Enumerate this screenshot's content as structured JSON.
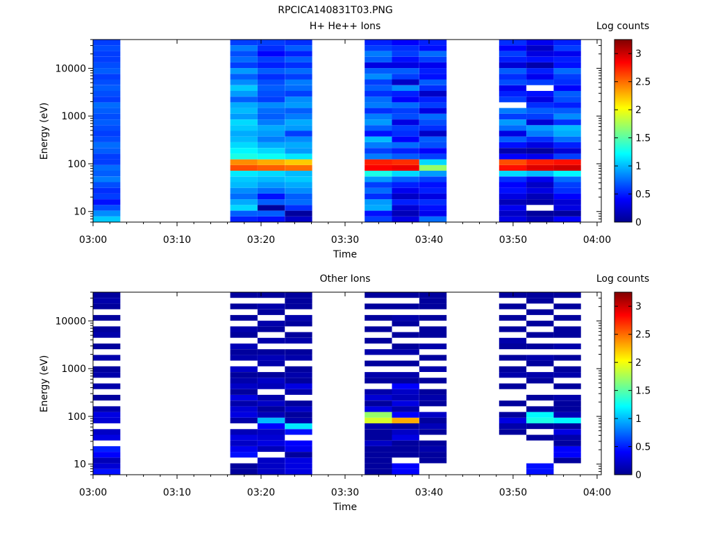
{
  "figure_title": "RPCICA140831T03.PNG",
  "colors": {
    "colormap": [
      "#00008f",
      "#0000ff",
      "#0080ff",
      "#00ffff",
      "#80ff80",
      "#ffff00",
      "#ff8000",
      "#ff0000",
      "#800000"
    ]
  },
  "chart_data": [
    {
      "type": "heatmap",
      "title": "H+ He++ Ions",
      "xlabel": "Time",
      "ylabel": "Energy (eV)",
      "xticks": [
        "03:00",
        "03:10",
        "03:20",
        "03:30",
        "03:40",
        "03:50",
        "04:00"
      ],
      "yticks": [
        "10",
        "100",
        "1000",
        "10000"
      ],
      "yscale": "log",
      "ylim": [
        6,
        40000
      ],
      "colorbar": {
        "label": "Log counts",
        "ticks": [
          "0",
          "0.5",
          "1",
          "1.5",
          "2",
          "2.5",
          "3"
        ],
        "range": [
          0,
          3.25
        ]
      },
      "time_columns": [
        {
          "start": "03:00:00",
          "end": "03:03:15"
        },
        {
          "start": "03:16:20",
          "end": "03:19:35"
        },
        {
          "start": "03:19:35",
          "end": "03:22:50"
        },
        {
          "start": "03:22:50",
          "end": "03:26:05"
        },
        {
          "start": "03:32:20",
          "end": "03:35:35"
        },
        {
          "start": "03:35:35",
          "end": "03:38:50"
        },
        {
          "start": "03:38:50",
          "end": "03:42:05"
        },
        {
          "start": "03:48:20",
          "end": "03:51:35"
        },
        {
          "start": "03:51:35",
          "end": "03:54:50"
        },
        {
          "start": "03:54:50",
          "end": "03:58:05"
        }
      ],
      "cells": [
        {
          "col": 0,
          "values": [
            1.05,
            0.85,
            0.65,
            0.45,
            0.6,
            0.55,
            0.65,
            0.8,
            0.7,
            0.75,
            0.6,
            0.6,
            0.7,
            0.75,
            0.65,
            0.6,
            0.65,
            0.7,
            0.65,
            0.7,
            0.75,
            0.6,
            0.65,
            0.7,
            0.65,
            0.6,
            0.7,
            0.65,
            0.6,
            0.6,
            0.65,
            0.6
          ]
        },
        {
          "col": 1,
          "values": [
            0.5,
            0.7,
            1.1,
            0.95,
            0.75,
            0.85,
            1.0,
            1.05,
            1.15,
            2.6,
            2.4,
            1.3,
            1.2,
            1.1,
            1.0,
            0.95,
            1.05,
            1.1,
            0.9,
            1.0,
            0.95,
            0.7,
            0.9,
            1.05,
            0.85,
            0.7,
            0.9,
            0.6,
            0.75,
            0.65,
            0.8,
            0.6
          ]
        },
        {
          "col": 2,
          "values": [
            0.45,
            0.7,
            0.05,
            0.7,
            0.45,
            0.75,
            0.9,
            1.0,
            1.1,
            2.55,
            2.3,
            1.25,
            1.1,
            0.95,
            0.8,
            0.9,
            0.95,
            0.8,
            0.7,
            0.75,
            0.85,
            0.6,
            0.65,
            0.7,
            0.65,
            0.55,
            0.7,
            0.5,
            0.6,
            0.4,
            0.55,
            0.6
          ]
        },
        {
          "col": 3,
          "values": [
            0.2,
            0.05,
            0.55,
            0.75,
            0.7,
            0.85,
            0.95,
            1.05,
            1.0,
            2.5,
            2.2,
            1.15,
            0.9,
            0.95,
            0.85,
            0.6,
            0.9,
            0.95,
            0.8,
            0.7,
            0.9,
            0.85,
            0.6,
            0.75,
            0.8,
            0.6,
            0.75,
            0.55,
            0.7,
            0.5,
            0.7,
            0.55
          ]
        },
        {
          "col": 4,
          "values": [
            0.6,
            0.45,
            0.95,
            0.9,
            0.55,
            0.75,
            0.6,
            0.9,
            1.3,
            2.85,
            2.75,
            0.8,
            0.6,
            0.8,
            1.0,
            0.45,
            0.7,
            0.9,
            0.8,
            0.55,
            0.8,
            0.75,
            0.55,
            0.7,
            0.6,
            0.85,
            0.7,
            0.3,
            0.7,
            0.8,
            0.6,
            0.5
          ]
        },
        {
          "col": 5,
          "values": [
            0.3,
            0.15,
            0.25,
            0.5,
            0.2,
            0.35,
            0.5,
            0.7,
            1.1,
            2.9,
            2.7,
            0.7,
            0.5,
            0.75,
            0.4,
            0.55,
            0.6,
            0.3,
            0.65,
            0.6,
            0.75,
            0.4,
            0.5,
            0.85,
            0.2,
            0.6,
            0.7,
            0.3,
            0.45,
            0.6,
            0.55,
            0.4
          ]
        },
        {
          "col": 6,
          "values": [
            0.75,
            0.35,
            0.45,
            0.55,
            0.3,
            0.5,
            0.45,
            0.6,
            0.9,
            1.7,
            1.1,
            0.6,
            0.4,
            0.65,
            0.7,
            0.2,
            0.55,
            0.65,
            0.75,
            0.3,
            0.6,
            0.5,
            0.2,
            0.55,
            0.7,
            0.45,
            0.5,
            0.35,
            0.6,
            0.75,
            0.45,
            0.5
          ]
        },
        {
          "col": 7,
          "values": [
            0.3,
            0.2,
            0.35,
            0.15,
            0.3,
            0.45,
            0.4,
            0.55,
            1.1,
            2.8,
            2.6,
            0.4,
            0.1,
            0.45,
            0.7,
            0.3,
            0.75,
            0.9,
            0.6,
            0.8,
            null,
            0.6,
            0.5,
            0.35,
            0.65,
            0.55,
            0.7,
            0.25,
            0.5,
            0.6,
            0.4,
            0.55
          ]
        },
        {
          "col": 8,
          "values": [
            0.15,
            0.05,
            null,
            0.1,
            0.15,
            0.3,
            0.2,
            0.35,
            1.0,
            2.95,
            2.75,
            0.35,
            0.05,
            0.3,
            0.55,
            0.8,
            0.9,
            0.25,
            0.6,
            0.7,
            0.55,
            0.3,
            0.45,
            null,
            0.6,
            0.35,
            0.5,
            0.1,
            0.45,
            0.3,
            0.2,
            0.35
          ]
        },
        {
          "col": 9,
          "values": [
            0.4,
            0.05,
            0.3,
            0.25,
            0.4,
            0.55,
            0.6,
            0.75,
            1.2,
            3.0,
            2.8,
            0.6,
            0.25,
            0.5,
            0.75,
            0.95,
            1.0,
            0.55,
            0.85,
            0.7,
            0.5,
            0.65,
            0.7,
            0.4,
            0.55,
            0.6,
            0.75,
            0.45,
            0.5,
            0.35,
            0.6,
            0.5
          ]
        }
      ]
    },
    {
      "type": "heatmap",
      "title": "Other Ions",
      "xlabel": "Time",
      "ylabel": "Energy (eV)",
      "xticks": [
        "03:00",
        "03:10",
        "03:20",
        "03:30",
        "03:40",
        "03:50",
        "04:00"
      ],
      "yticks": [
        "10",
        "100",
        "1000",
        "10000"
      ],
      "yscale": "log",
      "ylim": [
        6,
        40000
      ],
      "colorbar": {
        "label": "Log counts",
        "ticks": [
          "0",
          "0.5",
          "1",
          "1.5",
          "2",
          "2.5",
          "3"
        ],
        "range": [
          0,
          3.25
        ]
      },
      "time_columns": [
        {
          "start": "03:00:00",
          "end": "03:03:15"
        },
        {
          "start": "03:16:20",
          "end": "03:19:35"
        },
        {
          "start": "03:19:35",
          "end": "03:22:50"
        },
        {
          "start": "03:22:50",
          "end": "03:26:05"
        },
        {
          "start": "03:32:20",
          "end": "03:35:35"
        },
        {
          "start": "03:35:35",
          "end": "03:38:50"
        },
        {
          "start": "03:38:50",
          "end": "03:42:05"
        },
        {
          "start": "03:48:20",
          "end": "03:51:35"
        },
        {
          "start": "03:51:35",
          "end": "03:54:50"
        },
        {
          "start": "03:54:50",
          "end": "03:58:05"
        }
      ],
      "cells": [
        {
          "col": 0,
          "values": [
            0.45,
            0.25,
            0.15,
            0.4,
            0.5,
            null,
            0.3,
            0.2,
            null,
            0.25,
            0.3,
            0.1,
            null,
            0.05,
            null,
            0.1,
            null,
            0.1,
            0.05,
            null,
            0.1,
            null,
            0.05,
            null,
            0.1,
            0.05,
            null,
            0.05,
            null,
            0.05,
            0.1,
            0.05
          ]
        },
        {
          "col": 1,
          "values": [
            0.05,
            0.05,
            null,
            0.45,
            0.35,
            0.2,
            0.3,
            0.15,
            null,
            0.1,
            0.3,
            0.25,
            0.1,
            0.3,
            0.05,
            0.2,
            0.1,
            0.05,
            0.2,
            null,
            0.1,
            0.05,
            0.15,
            null,
            0.05,
            0.1,
            null,
            0.05,
            null,
            0.05,
            null,
            0.05
          ]
        },
        {
          "col": 2,
          "values": [
            0.2,
            0.2,
            0.2,
            null,
            0.15,
            0.3,
            0.25,
            0.2,
            0.4,
            1.0,
            0.15,
            0.05,
            0.2,
            0.1,
            null,
            0.15,
            0.2,
            0.05,
            null,
            0.1,
            0.15,
            0.05,
            null,
            0.1,
            null,
            0.05,
            0.1,
            null,
            0.05,
            0.1,
            null,
            0.05
          ]
        },
        {
          "col": 3,
          "values": [
            0.3,
            0.3,
            0.3,
            0.05,
            0.35,
            0.4,
            null,
            0.45,
            1.15,
            0.1,
            0.05,
            0.2,
            0.05,
            null,
            0.1,
            0.3,
            0.05,
            0.1,
            0.05,
            null,
            0.1,
            0.05,
            null,
            0.1,
            0.05,
            null,
            0.05,
            0.1,
            null,
            0.05,
            0.05,
            0.05
          ]
        },
        {
          "col": 4,
          "values": [
            0.05,
            0.05,
            0.05,
            0.05,
            0.05,
            0.2,
            0.05,
            0.05,
            0.1,
            1.9,
            1.7,
            0.3,
            0.05,
            0.25,
            0.1,
            null,
            0.05,
            0.1,
            null,
            0.05,
            null,
            0.1,
            null,
            0.05,
            null,
            0.05,
            null,
            0.05,
            null,
            0.05,
            null,
            0.05
          ]
        },
        {
          "col": 5,
          "values": [
            0.4,
            0.4,
            null,
            0.05,
            0.05,
            0.05,
            0.3,
            0.2,
            0.05,
            2.3,
            0.4,
            0.1,
            0.3,
            0.15,
            0.2,
            0.4,
            0.05,
            0.1,
            null,
            0.05,
            null,
            0.1,
            0.05,
            null,
            0.05,
            null,
            0.05,
            0.1,
            null,
            0.05,
            null,
            0.05
          ]
        },
        {
          "col": 6,
          "values": [
            null,
            null,
            0.05,
            0.05,
            0.1,
            0.05,
            null,
            0.05,
            0.15,
            0.05,
            0.2,
            null,
            0.05,
            0.1,
            0.05,
            null,
            0.05,
            null,
            0.1,
            null,
            0.05,
            null,
            0.1,
            null,
            0.05,
            0.05,
            null,
            0.05,
            null,
            0.05,
            0.05,
            0.05
          ]
        },
        {
          "col": 7,
          "values": [
            null,
            null,
            null,
            null,
            null,
            null,
            null,
            0.05,
            0.1,
            0.3,
            0.05,
            null,
            0.05,
            null,
            null,
            0.05,
            null,
            0.1,
            0.05,
            null,
            0.05,
            null,
            0.05,
            0.1,
            null,
            0.05,
            null,
            0.05,
            null,
            0.05,
            null,
            0.05
          ]
        },
        {
          "col": 8,
          "values": [
            0.45,
            0.45,
            null,
            null,
            null,
            null,
            0.05,
            null,
            0.05,
            1.3,
            1.2,
            0.05,
            null,
            0.05,
            null,
            null,
            0.05,
            0.1,
            null,
            0.05,
            0.1,
            null,
            0.05,
            null,
            0.05,
            null,
            0.05,
            null,
            0.05,
            null,
            0.05,
            0.05
          ]
        },
        {
          "col": 9,
          "values": [
            null,
            null,
            0.05,
            0.4,
            0.4,
            0.05,
            0.1,
            0.3,
            0.05,
            1.2,
            0.15,
            0.05,
            0.05,
            0.1,
            null,
            0.05,
            null,
            0.1,
            0.05,
            null,
            0.05,
            null,
            0.1,
            null,
            0.05,
            0.05,
            null,
            0.05,
            null,
            0.05,
            null,
            0.05
          ]
        }
      ]
    }
  ]
}
